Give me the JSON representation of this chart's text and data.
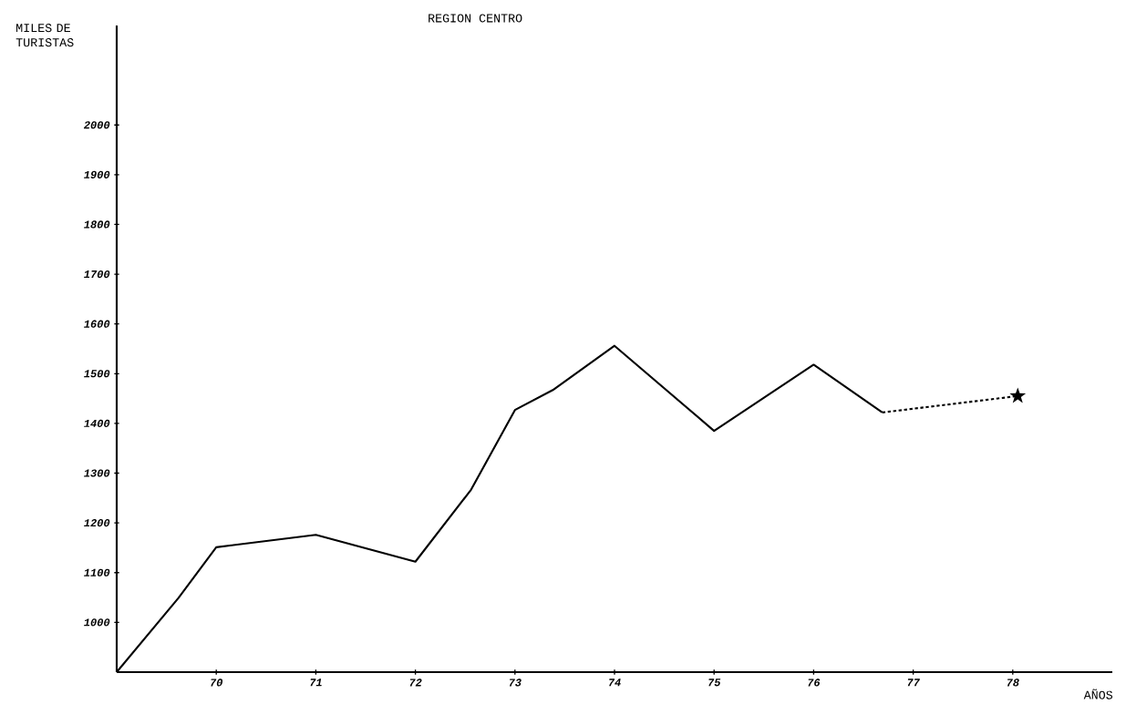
{
  "chart_data": {
    "type": "line",
    "title": "REGION CENTRO",
    "ylabel": "MILES DE TURISTAS",
    "xlabel": "AÑOS",
    "xlim": [
      69,
      79
    ],
    "ylim": [
      900,
      2200
    ],
    "xticks": [
      {
        "value": 70,
        "label": "70"
      },
      {
        "value": 71,
        "label": "71"
      },
      {
        "value": 72,
        "label": "72"
      },
      {
        "value": 73,
        "label": "73"
      },
      {
        "value": 74,
        "label": "74"
      },
      {
        "value": 75,
        "label": "75"
      },
      {
        "value": 76,
        "label": "76"
      },
      {
        "value": 77,
        "label": "77"
      },
      {
        "value": 78,
        "label": "78"
      }
    ],
    "yticks": [
      1000,
      1100,
      1200,
      1300,
      1400,
      1500,
      1600,
      1700,
      1800,
      1900,
      2000
    ],
    "grid": false,
    "series": [
      {
        "color": "#000000",
        "line_style": "solid",
        "marker": "none",
        "x": [
          69,
          69.62,
          70,
          71,
          72,
          72.56,
          73,
          73.38,
          74,
          75,
          76,
          76.69
        ],
        "values": [
          900,
          1049,
          1151,
          1176,
          1122,
          1267,
          1427,
          1467,
          1556,
          1385,
          1518,
          1422
        ]
      },
      {
        "color": "#000000",
        "line_style": "dotted",
        "marker": "none",
        "x": [
          76.69,
          78.05
        ],
        "values": [
          1422,
          1455
        ]
      },
      {
        "type": "scatter",
        "color": "#000000",
        "marker": "star",
        "x": [
          78.05
        ],
        "values": [
          1455
        ]
      }
    ]
  }
}
